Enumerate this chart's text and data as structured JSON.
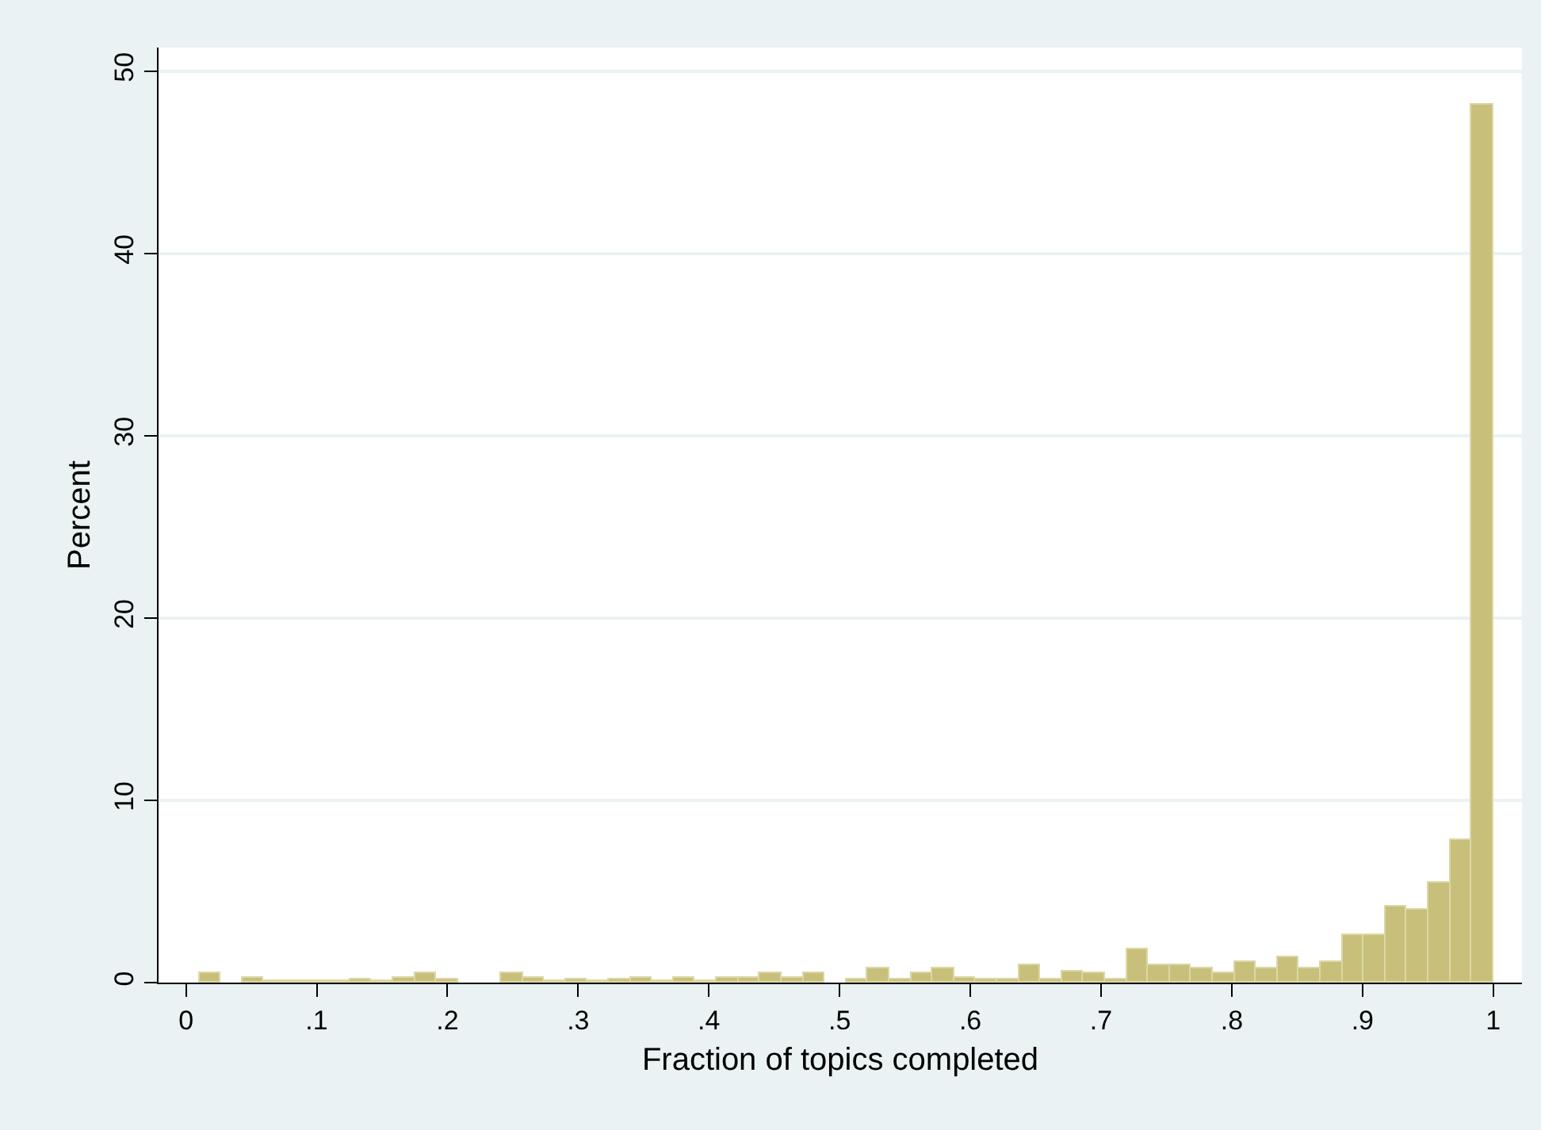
{
  "chart_data": {
    "type": "histogram",
    "xlabel": "Fraction of topics completed",
    "ylabel": "Percent",
    "bins": [
      0.01,
      0.0265,
      0.043,
      0.0595,
      0.076,
      0.0925,
      0.109,
      0.1255,
      0.142,
      0.1585,
      0.175,
      0.1915,
      0.208,
      0.2245,
      0.241,
      0.2575,
      0.274,
      0.2905,
      0.307,
      0.3235,
      0.34,
      0.3565,
      0.373,
      0.3895,
      0.406,
      0.4225,
      0.439,
      0.4555,
      0.472,
      0.4885,
      0.505,
      0.5215,
      0.538,
      0.5545,
      0.571,
      0.5875,
      0.604,
      0.6205,
      0.637,
      0.6535,
      0.67,
      0.6865,
      0.703,
      0.7195,
      0.736,
      0.7525,
      0.769,
      0.7855,
      0.802,
      0.8185,
      0.835,
      0.8515,
      0.868,
      0.8845,
      0.901,
      0.9175,
      0.934,
      0.9505,
      0.967,
      0.9835,
      1.0
    ],
    "values": [
      0.5,
      0,
      0.3,
      0.1,
      0.1,
      0.1,
      0.1,
      0.2,
      0.1,
      0.3,
      0.5,
      0.2,
      0,
      0,
      0.5,
      0.3,
      0.1,
      0.2,
      0.1,
      0.2,
      0.3,
      0.1,
      0.3,
      0.1,
      0.3,
      0.3,
      0.5,
      0.3,
      0.5,
      0,
      0.2,
      0.8,
      0.2,
      0.5,
      0.8,
      0.3,
      0.2,
      0.2,
      1.0,
      0.2,
      0.6,
      0.5,
      0.2,
      1.8,
      1.0,
      1.0,
      0.8,
      0.5,
      1.1,
      0.8,
      1.4,
      0.8,
      1.1,
      2.6,
      2.6,
      4.2,
      4.0,
      5.5,
      7.8,
      48.2
    ],
    "color": "#c8c07a",
    "xlim": [
      -0.021,
      1.022
    ],
    "xticks": [
      0,
      {
        "value": 0.1,
        "label": ".1"
      },
      {
        "value": 0.2,
        "label": ".2"
      },
      {
        "value": 0.3,
        "label": ".3"
      },
      {
        "value": 0.4,
        "label": ".4"
      },
      {
        "value": 0.5,
        "label": ".5"
      },
      {
        "value": 0.6,
        "label": ".6"
      },
      {
        "value": 0.7,
        "label": ".7"
      },
      {
        "value": 0.8,
        "label": ".8"
      },
      {
        "value": 0.9,
        "label": ".9"
      },
      1
    ],
    "ylim": [
      0,
      51.3
    ],
    "yticks": [
      0,
      10,
      20,
      30,
      40,
      50
    ],
    "grid": "y",
    "legend": false
  }
}
